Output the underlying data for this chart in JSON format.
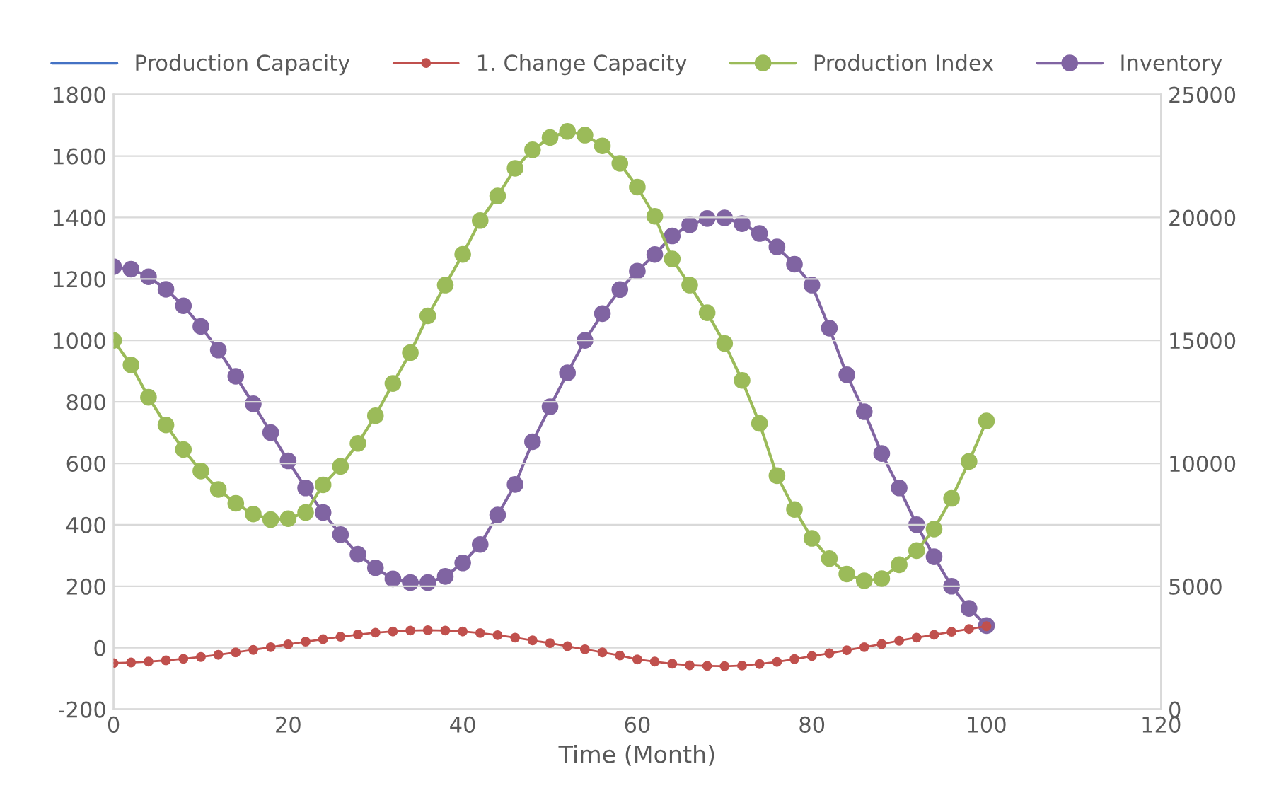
{
  "chart_data": {
    "type": "line",
    "xlabel": "Time (Month)",
    "x": [
      0,
      2,
      4,
      6,
      8,
      10,
      12,
      14,
      16,
      18,
      20,
      22,
      24,
      26,
      28,
      30,
      32,
      34,
      36,
      38,
      40,
      42,
      44,
      46,
      48,
      50,
      52,
      54,
      56,
      58,
      60,
      62,
      64,
      66,
      68,
      70,
      72,
      74,
      76,
      78,
      80,
      82,
      84,
      86,
      88,
      90,
      92,
      94,
      96,
      98,
      100
    ],
    "series": [
      {
        "name": "Production Capacity",
        "color": "#4472c4",
        "marker": "none",
        "values": [
          null,
          null,
          null,
          null,
          null,
          null,
          null,
          null,
          null,
          null,
          null,
          null,
          null,
          null,
          null,
          null,
          null,
          null,
          null,
          null,
          null,
          null,
          null,
          null,
          null,
          null,
          null,
          null,
          null,
          null,
          null,
          null,
          null,
          null,
          null,
          null,
          null,
          null,
          null,
          null,
          null,
          null,
          null,
          null,
          null,
          null,
          null,
          null,
          null,
          null,
          null
        ]
      },
      {
        "name": "1. Change Capacity",
        "color": "#c0504d",
        "marker": "circle",
        "values": [
          -50,
          -48,
          -45,
          -41,
          -36,
          -30,
          -23,
          -15,
          -7,
          2,
          11,
          20,
          28,
          36,
          43,
          49,
          53,
          56,
          57,
          56,
          53,
          48,
          41,
          33,
          24,
          15,
          5,
          -5,
          -15,
          -25,
          -38,
          -45,
          -52,
          -57,
          -59,
          -60,
          -58,
          -53,
          -46,
          -37,
          -27,
          -18,
          -8,
          2,
          12,
          23,
          33,
          42,
          52,
          61,
          70
        ]
      },
      {
        "name": "Production Index",
        "color": "#9bbb59",
        "marker": "circle",
        "values": [
          1000,
          920,
          815,
          725,
          645,
          575,
          515,
          470,
          435,
          417,
          420,
          440,
          530,
          590,
          665,
          755,
          860,
          960,
          1080,
          1180,
          1280,
          1390,
          1470,
          1560,
          1620,
          1660,
          1680,
          1668,
          1633,
          1576,
          1499,
          1404,
          1265,
          1180,
          1090,
          990,
          870,
          730,
          560,
          450,
          356,
          290,
          240,
          218,
          225,
          270,
          316,
          386,
          486,
          606,
          738
        ]
      },
      {
        "name": "Inventory",
        "color": "#8064a2",
        "marker": "circle",
        "axis": "y2",
        "values": [
          18000,
          17900,
          17590,
          17080,
          16410,
          15570,
          14610,
          13540,
          12420,
          11250,
          10100,
          9000,
          8000,
          7100,
          6300,
          5750,
          5300,
          5150,
          5150,
          5400,
          5950,
          6700,
          7900,
          9140,
          10880,
          12300,
          13680,
          15000,
          16090,
          17070,
          17820,
          18495,
          19250,
          19700,
          19960,
          19980,
          19750,
          19350,
          18800,
          18100,
          17250,
          15500,
          13600,
          12100,
          10400,
          9000,
          7500,
          6200,
          5000,
          4100,
          3400
        ]
      }
    ],
    "xlim": [
      0,
      120
    ],
    "xticks": [
      0,
      20,
      40,
      60,
      80,
      100,
      120
    ],
    "ylim": [
      -200,
      1800
    ],
    "yticks": [
      -200,
      0,
      200,
      400,
      600,
      800,
      1000,
      1200,
      1400,
      1600,
      1800
    ],
    "y2lim": [
      0,
      25000
    ],
    "y2ticks": [
      0,
      5000,
      10000,
      15000,
      20000,
      25000
    ],
    "grid": "y",
    "legend": "top",
    "line_style": "solid"
  }
}
